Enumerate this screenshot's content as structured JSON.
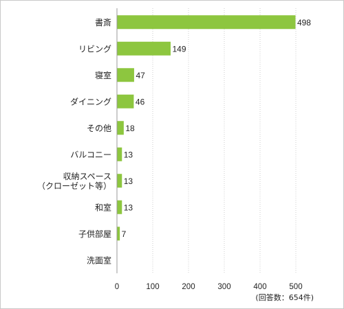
{
  "chart_data": {
    "type": "bar",
    "orientation": "horizontal",
    "categories": [
      [
        "書斎"
      ],
      [
        "リビング"
      ],
      [
        "寝室"
      ],
      [
        "ダイニング"
      ],
      [
        "その他"
      ],
      [
        "バルコニー"
      ],
      [
        "収納スペース",
        "（クローゼット等）"
      ],
      [
        "和室"
      ],
      [
        "子供部屋"
      ],
      [
        "洗面室"
      ]
    ],
    "values": [
      498,
      149,
      47,
      46,
      18,
      13,
      13,
      13,
      7,
      null
    ],
    "value_labels": [
      "498",
      "149",
      "47",
      "46",
      "18",
      "13",
      "13",
      "13",
      "7",
      ""
    ],
    "xlim": [
      0,
      500
    ],
    "xticks": [
      0,
      100,
      200,
      300,
      400,
      500
    ],
    "grid": true,
    "grid_style": "dotted vertical",
    "bar_color": "#8dc63f",
    "note": "(回答数：654件)"
  }
}
